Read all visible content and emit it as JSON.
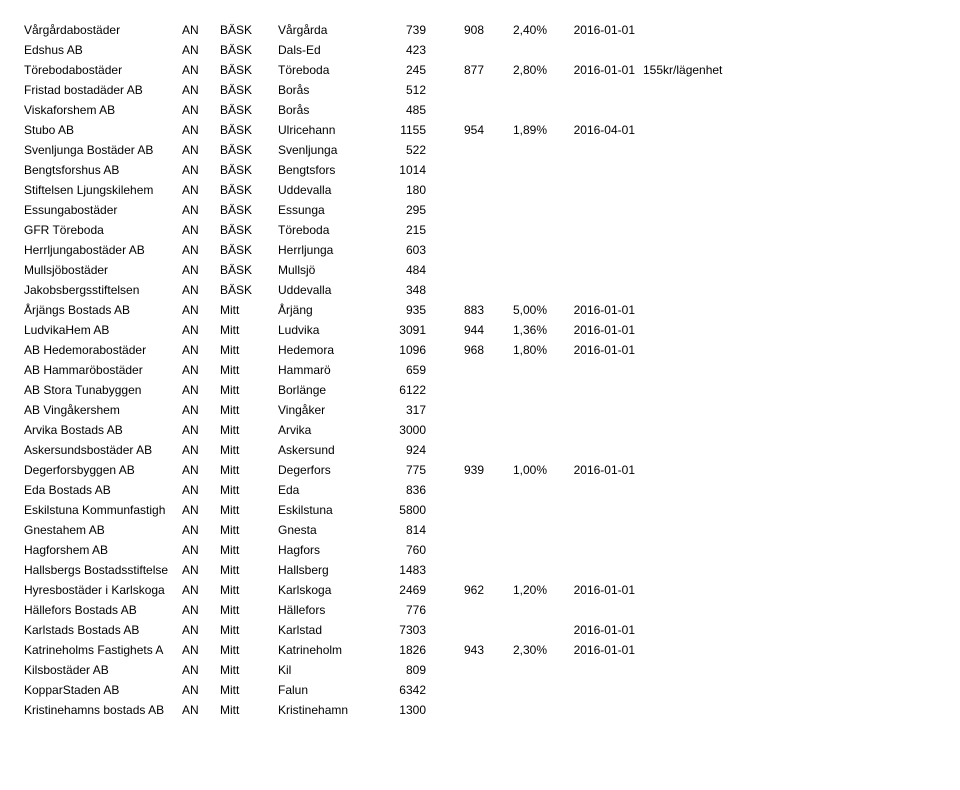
{
  "table": {
    "font_size": 12,
    "text_color": "#000000",
    "background": "#ffffff",
    "rows": [
      {
        "company": "Vårgårdabostäder",
        "an": "AN",
        "region": "BÄSK",
        "city": "Vårgårda",
        "num1": "739",
        "num2": "908",
        "pct": "2,40%",
        "date": "2016-01-01",
        "note": ""
      },
      {
        "company": "Edshus AB",
        "an": "AN",
        "region": "BÄSK",
        "city": "Dals-Ed",
        "num1": "423",
        "num2": "",
        "pct": "",
        "date": "",
        "note": ""
      },
      {
        "company": "Törebodabostäder",
        "an": "AN",
        "region": "BÄSK",
        "city": "Töreboda",
        "num1": "245",
        "num2": "877",
        "pct": "2,80%",
        "date": "2016-01-01",
        "note": "155kr/lägenhet"
      },
      {
        "company": "Fristad bostadäder AB",
        "an": "AN",
        "region": "BÄSK",
        "city": "Borås",
        "num1": "512",
        "num2": "",
        "pct": "",
        "date": "",
        "note": ""
      },
      {
        "company": "Viskaforshem AB",
        "an": "AN",
        "region": "BÄSK",
        "city": "Borås",
        "num1": "485",
        "num2": "",
        "pct": "",
        "date": "",
        "note": ""
      },
      {
        "company": "Stubo AB",
        "an": "AN",
        "region": "BÄSK",
        "city": "Ulricehann",
        "num1": "1155",
        "num2": "954",
        "pct": "1,89%",
        "date": "2016-04-01",
        "note": ""
      },
      {
        "company": "Svenljunga Bostäder AB",
        "an": "AN",
        "region": "BÄSK",
        "city": "Svenljunga",
        "num1": "522",
        "num2": "",
        "pct": "",
        "date": "",
        "note": ""
      },
      {
        "company": "Bengtsforshus AB",
        "an": "AN",
        "region": "BÄSK",
        "city": "Bengtsfors",
        "num1": "1014",
        "num2": "",
        "pct": "",
        "date": "",
        "note": ""
      },
      {
        "company": "Stiftelsen Ljungskilehem",
        "an": "AN",
        "region": "BÄSK",
        "city": "Uddevalla",
        "num1": "180",
        "num2": "",
        "pct": "",
        "date": "",
        "note": ""
      },
      {
        "company": "Essungabostäder",
        "an": "AN",
        "region": "BÄSK",
        "city": "Essunga",
        "num1": "295",
        "num2": "",
        "pct": "",
        "date": "",
        "note": ""
      },
      {
        "company": "GFR Töreboda",
        "an": "AN",
        "region": "BÄSK",
        "city": "Töreboda",
        "num1": "215",
        "num2": "",
        "pct": "",
        "date": "",
        "note": ""
      },
      {
        "company": "Herrljungabostäder AB",
        "an": "AN",
        "region": "BÄSK",
        "city": "Herrljunga",
        "num1": "603",
        "num2": "",
        "pct": "",
        "date": "",
        "note": ""
      },
      {
        "company": "Mullsjöbostäder",
        "an": "AN",
        "region": "BÄSK",
        "city": "Mullsjö",
        "num1": "484",
        "num2": "",
        "pct": "",
        "date": "",
        "note": ""
      },
      {
        "company": "Jakobsbergsstiftelsen",
        "an": "AN",
        "region": "BÄSK",
        "city": "Uddevalla",
        "num1": "348",
        "num2": "",
        "pct": "",
        "date": "",
        "note": ""
      },
      {
        "company": "Årjängs Bostads AB",
        "an": "AN",
        "region": "Mitt",
        "city": "Årjäng",
        "num1": "935",
        "num2": "883",
        "pct": "5,00%",
        "date": "2016-01-01",
        "note": ""
      },
      {
        "company": "LudvikaHem AB",
        "an": "AN",
        "region": "Mitt",
        "city": "Ludvika",
        "num1": "3091",
        "num2": "944",
        "pct": "1,36%",
        "date": "2016-01-01",
        "note": ""
      },
      {
        "company": "AB Hedemorabostäder",
        "an": "AN",
        "region": "Mitt",
        "city": "Hedemora",
        "num1": "1096",
        "num2": "968",
        "pct": "1,80%",
        "date": "2016-01-01",
        "note": ""
      },
      {
        "company": "AB Hammaröbostäder",
        "an": "AN",
        "region": "Mitt",
        "city": "Hammarö",
        "num1": "659",
        "num2": "",
        "pct": "",
        "date": "",
        "note": ""
      },
      {
        "company": "AB Stora Tunabyggen",
        "an": "AN",
        "region": "Mitt",
        "city": "Borlänge",
        "num1": "6122",
        "num2": "",
        "pct": "",
        "date": "",
        "note": ""
      },
      {
        "company": "AB Vingåkershem",
        "an": "AN",
        "region": "Mitt",
        "city": "Vingåker",
        "num1": "317",
        "num2": "",
        "pct": "",
        "date": "",
        "note": ""
      },
      {
        "company": "Arvika Bostads AB",
        "an": "AN",
        "region": "Mitt",
        "city": "Arvika",
        "num1": "3000",
        "num2": "",
        "pct": "",
        "date": "",
        "note": ""
      },
      {
        "company": "Askersundsbostäder AB",
        "an": "AN",
        "region": "Mitt",
        "city": "Askersund",
        "num1": "924",
        "num2": "",
        "pct": "",
        "date": "",
        "note": ""
      },
      {
        "company": "Degerforsbyggen AB",
        "an": "AN",
        "region": "Mitt",
        "city": "Degerfors",
        "num1": "775",
        "num2": "939",
        "pct": "1,00%",
        "date": "2016-01-01",
        "note": ""
      },
      {
        "company": "Eda Bostads AB",
        "an": "AN",
        "region": "Mitt",
        "city": "Eda",
        "num1": "836",
        "num2": "",
        "pct": "",
        "date": "",
        "note": ""
      },
      {
        "company": "Eskilstuna Kommunfastigh",
        "an": "AN",
        "region": "Mitt",
        "city": "Eskilstuna",
        "num1": "5800",
        "num2": "",
        "pct": "",
        "date": "",
        "note": ""
      },
      {
        "company": "Gnestahem AB",
        "an": "AN",
        "region": "Mitt",
        "city": "Gnesta",
        "num1": "814",
        "num2": "",
        "pct": "",
        "date": "",
        "note": ""
      },
      {
        "company": "Hagforshem AB",
        "an": "AN",
        "region": "Mitt",
        "city": "Hagfors",
        "num1": "760",
        "num2": "",
        "pct": "",
        "date": "",
        "note": ""
      },
      {
        "company": "Hallsbergs Bostadsstiftelse",
        "an": "AN",
        "region": "Mitt",
        "city": "Hallsberg",
        "num1": "1483",
        "num2": "",
        "pct": "",
        "date": "",
        "note": ""
      },
      {
        "company": "Hyresbostäder i Karlskoga",
        "an": "AN",
        "region": "Mitt",
        "city": "Karlskoga",
        "num1": "2469",
        "num2": "962",
        "pct": "1,20%",
        "date": "2016-01-01",
        "note": ""
      },
      {
        "company": "Hällefors Bostads AB",
        "an": "AN",
        "region": "Mitt",
        "city": "Hällefors",
        "num1": "776",
        "num2": "",
        "pct": "",
        "date": "",
        "note": ""
      },
      {
        "company": "Karlstads Bostads AB",
        "an": "AN",
        "region": "Mitt",
        "city": "Karlstad",
        "num1": "7303",
        "num2": "",
        "pct": "",
        "date": "2016-01-01",
        "note": ""
      },
      {
        "company": "Katrineholms Fastighets A",
        "an": "AN",
        "region": "Mitt",
        "city": "Katrineholm",
        "num1": "1826",
        "num2": "943",
        "pct": "2,30%",
        "date": "2016-01-01",
        "note": ""
      },
      {
        "company": "Kilsbostäder AB",
        "an": "AN",
        "region": "Mitt",
        "city": "Kil",
        "num1": "809",
        "num2": "",
        "pct": "",
        "date": "",
        "note": ""
      },
      {
        "company": "KopparStaden AB",
        "an": "AN",
        "region": "Mitt",
        "city": "Falun",
        "num1": "6342",
        "num2": "",
        "pct": "",
        "date": "",
        "note": ""
      },
      {
        "company": "Kristinehamns bostads AB",
        "an": "AN",
        "region": "Mitt",
        "city": "Kristinehamn",
        "num1": "1300",
        "num2": "",
        "pct": "",
        "date": "",
        "note": ""
      }
    ]
  }
}
